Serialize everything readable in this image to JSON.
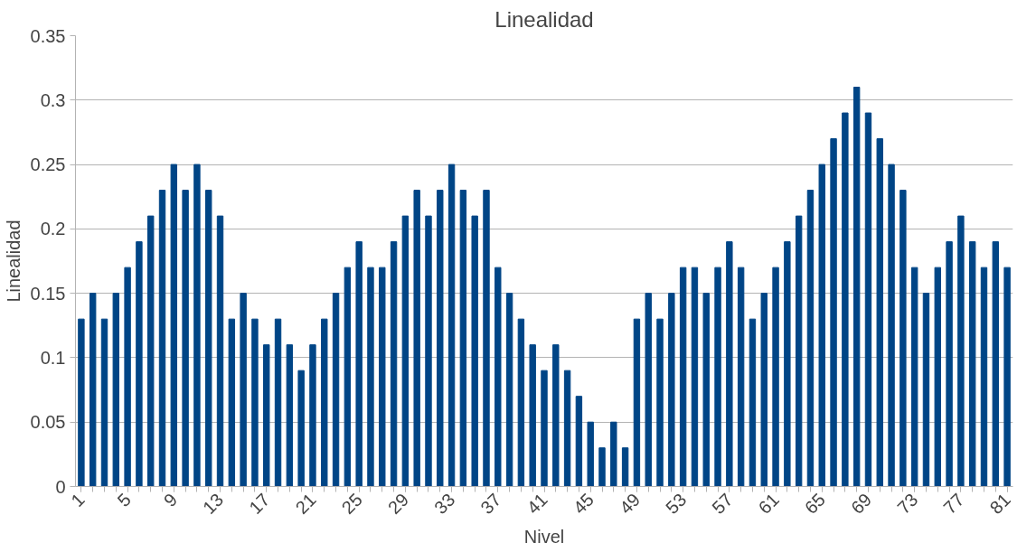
{
  "chart_data": {
    "type": "bar",
    "title": "Linealidad",
    "xlabel": "Nivel",
    "ylabel": "Linealidad",
    "categories": [
      "1",
      null,
      null,
      null,
      "5",
      null,
      null,
      null,
      "9",
      null,
      null,
      null,
      "13",
      null,
      null,
      null,
      "17",
      null,
      null,
      null,
      "21",
      null,
      null,
      null,
      "25",
      null,
      null,
      null,
      "29",
      null,
      null,
      null,
      "33",
      null,
      null,
      null,
      "37",
      null,
      null,
      null,
      "41",
      null,
      null,
      null,
      "45",
      null,
      null,
      null,
      "49",
      null,
      null,
      null,
      "53",
      null,
      null,
      null,
      "57",
      null,
      null,
      null,
      "61",
      null,
      null,
      null,
      "65",
      null,
      null,
      null,
      "69",
      null,
      null,
      null,
      "73",
      null,
      null,
      null,
      "77",
      null,
      null,
      null,
      "81"
    ],
    "values": [
      0.13,
      0.15,
      0.13,
      0.15,
      0.17,
      0.19,
      0.21,
      0.23,
      0.25,
      0.23,
      0.25,
      0.23,
      0.21,
      0.13,
      0.15,
      0.13,
      0.11,
      0.13,
      0.11,
      0.09,
      0.11,
      0.13,
      0.15,
      0.17,
      0.19,
      0.17,
      0.17,
      0.19,
      0.21,
      0.23,
      0.21,
      0.23,
      0.25,
      0.23,
      0.21,
      0.23,
      0.17,
      0.15,
      0.13,
      0.11,
      0.09,
      0.11,
      0.09,
      0.07,
      0.05,
      0.03,
      0.05,
      0.03,
      0.13,
      0.15,
      0.13,
      0.15,
      0.17,
      0.17,
      0.15,
      0.17,
      0.19,
      0.17,
      0.13,
      0.15,
      0.17,
      0.19,
      0.21,
      0.23,
      0.25,
      0.27,
      0.29,
      0.31,
      0.29,
      0.27,
      0.25,
      0.23,
      0.17,
      0.15,
      0.17,
      0.19,
      0.21,
      0.19,
      0.17,
      0.19,
      0.17
    ],
    "color": "#004586",
    "ylim": [
      0,
      0.35
    ],
    "yticks": [
      0,
      0.05,
      0.1,
      0.15,
      0.2,
      0.25,
      0.3,
      0.35
    ],
    "grid": "y"
  }
}
